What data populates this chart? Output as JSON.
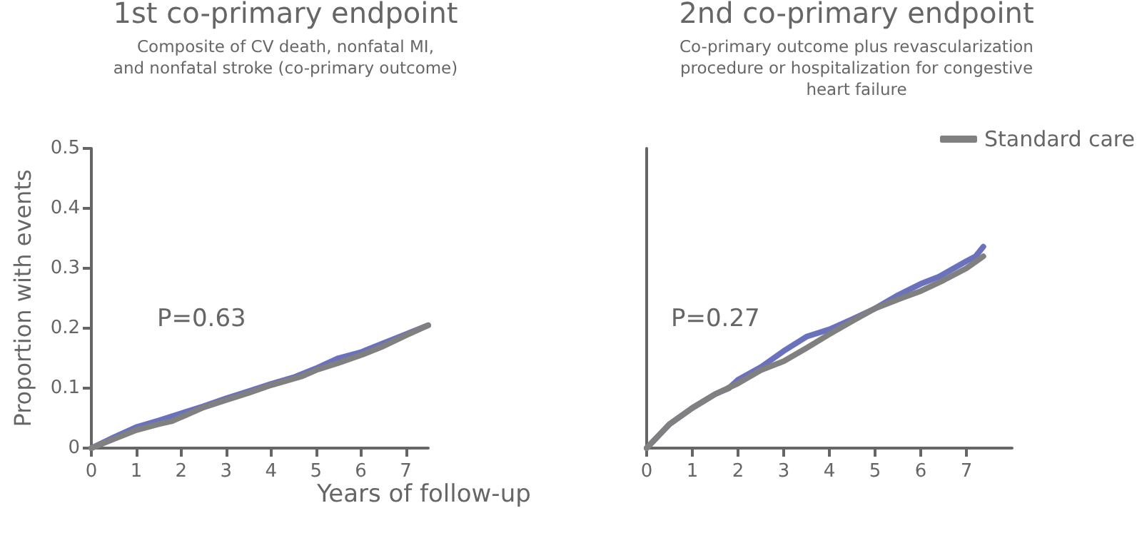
{
  "chart_data": [
    {
      "type": "line",
      "title": "1st co-primary endpoint",
      "subtitle": "Composite of CV death, nonfatal MI,\nand nonfatal stroke (co-primary outcome)",
      "xlabel": "Years of follow-up",
      "ylabel": "Proportion with events",
      "annotations": [
        "P=0.63"
      ],
      "xlim": [
        0,
        7.5
      ],
      "xticks": [
        0,
        1,
        2,
        3,
        4,
        5,
        6,
        7
      ],
      "ylim": [
        0,
        0.5
      ],
      "yticks": [
        0,
        0.1,
        0.2,
        0.3,
        0.4,
        0.5
      ],
      "grid": false,
      "legend": false,
      "marker": "none",
      "line_style": "solid",
      "series": [
        {
          "color": "#6a72bd",
          "x": [
            0,
            0.5,
            1,
            1.5,
            2,
            2.5,
            3,
            3.5,
            4,
            4.5,
            5,
            5.5,
            6,
            6.5,
            7,
            7.5
          ],
          "values": [
            0,
            0.018,
            0.035,
            0.046,
            0.058,
            0.07,
            0.083,
            0.095,
            0.107,
            0.118,
            0.133,
            0.15,
            0.16,
            0.175,
            0.19,
            0.205
          ]
        },
        {
          "color": "#808080",
          "x": [
            0,
            0.5,
            1,
            1.5,
            1.8,
            2.5,
            3,
            3.5,
            4,
            4.7,
            5,
            5.5,
            6,
            6.5,
            7,
            7.5
          ],
          "values": [
            0,
            0.015,
            0.03,
            0.04,
            0.045,
            0.068,
            0.08,
            0.092,
            0.105,
            0.12,
            0.13,
            0.142,
            0.155,
            0.17,
            0.188,
            0.205
          ]
        }
      ]
    },
    {
      "type": "line",
      "title": "2nd co-primary endpoint",
      "subtitle": "Co-primary outcome plus revascularization\nprocedure or hospitalization for congestive\nheart failure",
      "annotations": [
        "P=0.27"
      ],
      "xlim": [
        0,
        8
      ],
      "xticks": [
        0,
        1,
        2,
        3,
        4,
        5,
        6,
        7
      ],
      "ylim": [
        0,
        0.5
      ],
      "tick_labels": "x",
      "grid": false,
      "legend": "top right",
      "marker": "none",
      "line_style": "solid",
      "series": [
        {
          "color": "#6a72bd",
          "x": [
            0,
            0.5,
            1,
            1.5,
            1.8,
            2,
            2.5,
            3,
            3.5,
            4,
            4.5,
            5,
            5.5,
            6,
            6.4,
            7,
            7.2,
            7.37
          ],
          "values": [
            0,
            0.04,
            0.067,
            0.09,
            0.1,
            0.114,
            0.135,
            0.162,
            0.186,
            0.198,
            0.215,
            0.233,
            0.255,
            0.274,
            0.286,
            0.312,
            0.32,
            0.336
          ]
        },
        {
          "name": "Standard care",
          "color": "#808080",
          "x": [
            0,
            0.5,
            1,
            1.5,
            2,
            2.5,
            3,
            3.5,
            4,
            4.5,
            5,
            5.5,
            6,
            6.5,
            7,
            7.37
          ],
          "values": [
            0,
            0.04,
            0.067,
            0.09,
            0.108,
            0.13,
            0.145,
            0.167,
            0.19,
            0.212,
            0.233,
            0.248,
            0.262,
            0.28,
            0.3,
            0.32
          ]
        }
      ]
    }
  ]
}
